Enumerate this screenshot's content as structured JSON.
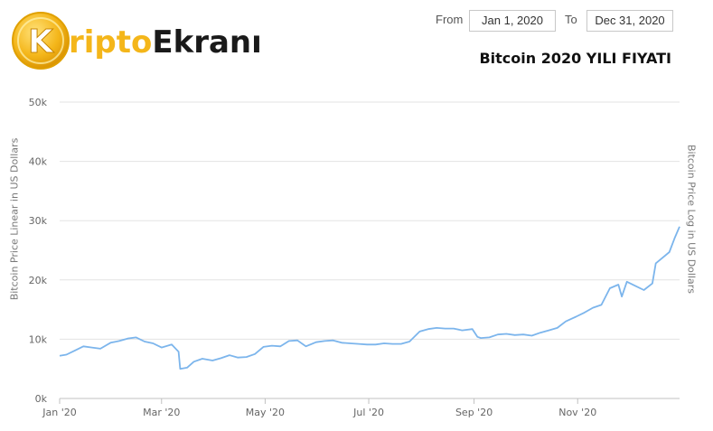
{
  "logo": {
    "coin_letter": "K",
    "part1": "ripto",
    "part2": "Ekranı",
    "colors": {
      "coin": "#f4b61a",
      "part1": "#f4b61a",
      "part2": "#1a1a1a"
    }
  },
  "range": {
    "from_label": "From",
    "from_value": "Jan 1, 2020",
    "to_label": "To",
    "to_value": "Dec 31, 2020"
  },
  "chart_data": {
    "type": "line",
    "title": "Bitcoin 2020 YILI FIYATI",
    "ylabel": "Bitcoin Price Linear in US Dollars",
    "ylabel_right": "Bitcoin Price Log in US Dollars",
    "ylim": [
      0,
      50000
    ],
    "yticks": [
      0,
      10000,
      20000,
      30000,
      40000,
      50000
    ],
    "ytick_labels": [
      "0k",
      "10k",
      "20k",
      "30k",
      "40k",
      "50k"
    ],
    "xlim": [
      "2020-01-01",
      "2020-12-31"
    ],
    "xticks": [
      "2020-01-01",
      "2020-03-01",
      "2020-05-01",
      "2020-07-01",
      "2020-09-01",
      "2020-11-01"
    ],
    "xtick_labels": [
      "Jan '20",
      "Mar '20",
      "May '20",
      "Jul '20",
      "Sep '20",
      "Nov '20"
    ],
    "grid": true,
    "line_color": "#7cb5ec",
    "series": [
      {
        "x": [
          "2020-01-01",
          "2020-01-05",
          "2020-01-10",
          "2020-01-15",
          "2020-01-20",
          "2020-01-25",
          "2020-01-31",
          "2020-02-05",
          "2020-02-10",
          "2020-02-15",
          "2020-02-20",
          "2020-02-25",
          "2020-03-01",
          "2020-03-07",
          "2020-03-11",
          "2020-03-12",
          "2020-03-16",
          "2020-03-20",
          "2020-03-25",
          "2020-03-31",
          "2020-04-05",
          "2020-04-10",
          "2020-04-15",
          "2020-04-20",
          "2020-04-25",
          "2020-04-30",
          "2020-05-05",
          "2020-05-10",
          "2020-05-15",
          "2020-05-20",
          "2020-05-25",
          "2020-05-31",
          "2020-06-05",
          "2020-06-10",
          "2020-06-15",
          "2020-06-20",
          "2020-06-25",
          "2020-06-30",
          "2020-07-05",
          "2020-07-10",
          "2020-07-15",
          "2020-07-20",
          "2020-07-25",
          "2020-07-31",
          "2020-08-05",
          "2020-08-10",
          "2020-08-15",
          "2020-08-20",
          "2020-08-25",
          "2020-08-31",
          "2020-09-03",
          "2020-09-05",
          "2020-09-10",
          "2020-09-15",
          "2020-09-20",
          "2020-09-25",
          "2020-09-30",
          "2020-10-05",
          "2020-10-10",
          "2020-10-15",
          "2020-10-20",
          "2020-10-25",
          "2020-10-31",
          "2020-11-05",
          "2020-11-10",
          "2020-11-15",
          "2020-11-20",
          "2020-11-25",
          "2020-11-27",
          "2020-11-30",
          "2020-12-05",
          "2020-12-10",
          "2020-12-15",
          "2020-12-17",
          "2020-12-20",
          "2020-12-25",
          "2020-12-28",
          "2020-12-31"
        ],
        "y": [
          7200,
          7400,
          8100,
          8800,
          8600,
          8400,
          9400,
          9700,
          10100,
          10300,
          9600,
          9300,
          8600,
          9100,
          7900,
          5000,
          5200,
          6200,
          6700,
          6400,
          6800,
          7300,
          6900,
          7000,
          7500,
          8700,
          8900,
          8800,
          9700,
          9800,
          8800,
          9500,
          9700,
          9800,
          9400,
          9300,
          9200,
          9100,
          9100,
          9300,
          9200,
          9200,
          9600,
          11300,
          11700,
          11900,
          11800,
          11800,
          11500,
          11700,
          10400,
          10200,
          10300,
          10800,
          10900,
          10700,
          10800,
          10600,
          11100,
          11500,
          11900,
          13000,
          13800,
          14500,
          15300,
          15800,
          18600,
          19200,
          17200,
          19700,
          19000,
          18300,
          19400,
          22800,
          23500,
          24700,
          27000,
          29000
        ]
      }
    ]
  }
}
